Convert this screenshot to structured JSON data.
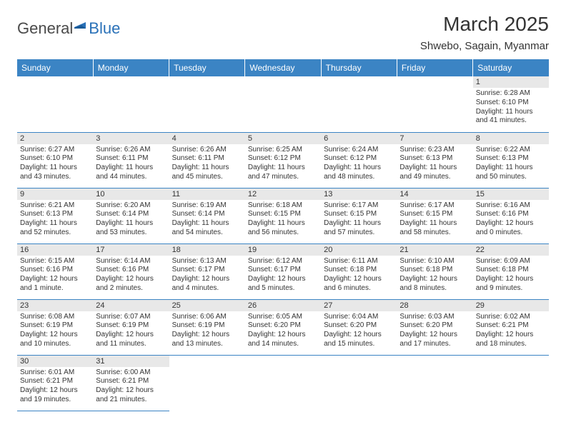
{
  "logo": {
    "part1": "General",
    "part2": "Blue"
  },
  "title": "March 2025",
  "location": "Shwebo, Sagain, Myanmar",
  "weekdays": [
    "Sunday",
    "Monday",
    "Tuesday",
    "Wednesday",
    "Thursday",
    "Friday",
    "Saturday"
  ],
  "header_bg": "#3b84c4",
  "border_color": "#3b84c4",
  "daynum_bg": "#e8e8e8",
  "weeks": [
    [
      {
        "day": null
      },
      {
        "day": null
      },
      {
        "day": null
      },
      {
        "day": null
      },
      {
        "day": null
      },
      {
        "day": null
      },
      {
        "day": 1,
        "sunrise": "6:28 AM",
        "sunset": "6:10 PM",
        "daylight": "11 hours and 41 minutes."
      }
    ],
    [
      {
        "day": 2,
        "sunrise": "6:27 AM",
        "sunset": "6:10 PM",
        "daylight": "11 hours and 43 minutes."
      },
      {
        "day": 3,
        "sunrise": "6:26 AM",
        "sunset": "6:11 PM",
        "daylight": "11 hours and 44 minutes."
      },
      {
        "day": 4,
        "sunrise": "6:26 AM",
        "sunset": "6:11 PM",
        "daylight": "11 hours and 45 minutes."
      },
      {
        "day": 5,
        "sunrise": "6:25 AM",
        "sunset": "6:12 PM",
        "daylight": "11 hours and 47 minutes."
      },
      {
        "day": 6,
        "sunrise": "6:24 AM",
        "sunset": "6:12 PM",
        "daylight": "11 hours and 48 minutes."
      },
      {
        "day": 7,
        "sunrise": "6:23 AM",
        "sunset": "6:13 PM",
        "daylight": "11 hours and 49 minutes."
      },
      {
        "day": 8,
        "sunrise": "6:22 AM",
        "sunset": "6:13 PM",
        "daylight": "11 hours and 50 minutes."
      }
    ],
    [
      {
        "day": 9,
        "sunrise": "6:21 AM",
        "sunset": "6:13 PM",
        "daylight": "11 hours and 52 minutes."
      },
      {
        "day": 10,
        "sunrise": "6:20 AM",
        "sunset": "6:14 PM",
        "daylight": "11 hours and 53 minutes."
      },
      {
        "day": 11,
        "sunrise": "6:19 AM",
        "sunset": "6:14 PM",
        "daylight": "11 hours and 54 minutes."
      },
      {
        "day": 12,
        "sunrise": "6:18 AM",
        "sunset": "6:15 PM",
        "daylight": "11 hours and 56 minutes."
      },
      {
        "day": 13,
        "sunrise": "6:17 AM",
        "sunset": "6:15 PM",
        "daylight": "11 hours and 57 minutes."
      },
      {
        "day": 14,
        "sunrise": "6:17 AM",
        "sunset": "6:15 PM",
        "daylight": "11 hours and 58 minutes."
      },
      {
        "day": 15,
        "sunrise": "6:16 AM",
        "sunset": "6:16 PM",
        "daylight": "12 hours and 0 minutes."
      }
    ],
    [
      {
        "day": 16,
        "sunrise": "6:15 AM",
        "sunset": "6:16 PM",
        "daylight": "12 hours and 1 minute."
      },
      {
        "day": 17,
        "sunrise": "6:14 AM",
        "sunset": "6:16 PM",
        "daylight": "12 hours and 2 minutes."
      },
      {
        "day": 18,
        "sunrise": "6:13 AM",
        "sunset": "6:17 PM",
        "daylight": "12 hours and 4 minutes."
      },
      {
        "day": 19,
        "sunrise": "6:12 AM",
        "sunset": "6:17 PM",
        "daylight": "12 hours and 5 minutes."
      },
      {
        "day": 20,
        "sunrise": "6:11 AM",
        "sunset": "6:18 PM",
        "daylight": "12 hours and 6 minutes."
      },
      {
        "day": 21,
        "sunrise": "6:10 AM",
        "sunset": "6:18 PM",
        "daylight": "12 hours and 8 minutes."
      },
      {
        "day": 22,
        "sunrise": "6:09 AM",
        "sunset": "6:18 PM",
        "daylight": "12 hours and 9 minutes."
      }
    ],
    [
      {
        "day": 23,
        "sunrise": "6:08 AM",
        "sunset": "6:19 PM",
        "daylight": "12 hours and 10 minutes."
      },
      {
        "day": 24,
        "sunrise": "6:07 AM",
        "sunset": "6:19 PM",
        "daylight": "12 hours and 11 minutes."
      },
      {
        "day": 25,
        "sunrise": "6:06 AM",
        "sunset": "6:19 PM",
        "daylight": "12 hours and 13 minutes."
      },
      {
        "day": 26,
        "sunrise": "6:05 AM",
        "sunset": "6:20 PM",
        "daylight": "12 hours and 14 minutes."
      },
      {
        "day": 27,
        "sunrise": "6:04 AM",
        "sunset": "6:20 PM",
        "daylight": "12 hours and 15 minutes."
      },
      {
        "day": 28,
        "sunrise": "6:03 AM",
        "sunset": "6:20 PM",
        "daylight": "12 hours and 17 minutes."
      },
      {
        "day": 29,
        "sunrise": "6:02 AM",
        "sunset": "6:21 PM",
        "daylight": "12 hours and 18 minutes."
      }
    ],
    [
      {
        "day": 30,
        "sunrise": "6:01 AM",
        "sunset": "6:21 PM",
        "daylight": "12 hours and 19 minutes."
      },
      {
        "day": 31,
        "sunrise": "6:00 AM",
        "sunset": "6:21 PM",
        "daylight": "12 hours and 21 minutes."
      },
      {
        "day": null
      },
      {
        "day": null
      },
      {
        "day": null
      },
      {
        "day": null
      },
      {
        "day": null
      }
    ]
  ],
  "labels": {
    "sunrise": "Sunrise:",
    "sunset": "Sunset:",
    "daylight": "Daylight:"
  }
}
